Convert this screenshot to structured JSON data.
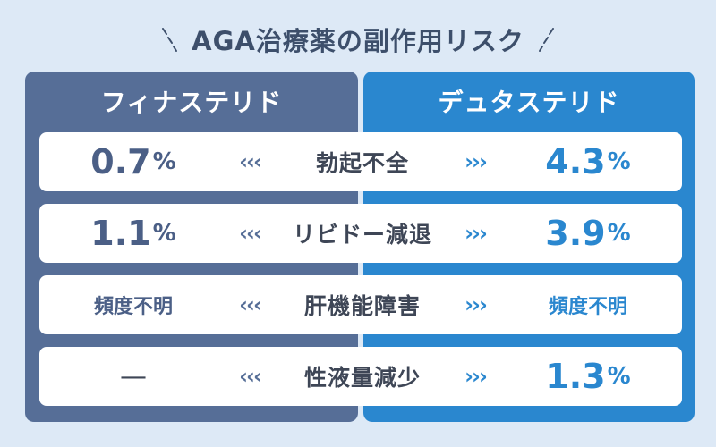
{
  "title": "AGA治療薬の副作用リスク",
  "columns": {
    "left": "フィナステリド",
    "right": "デュタステリド"
  },
  "arrows": {
    "left": "‹‹‹",
    "right": "›››"
  },
  "rows": [
    {
      "label": "勃起不全",
      "left": {
        "num": "0.7",
        "unit": "%"
      },
      "right": {
        "num": "4.3",
        "unit": "%"
      }
    },
    {
      "label": "リビドー減退",
      "left": {
        "num": "1.1",
        "unit": "%"
      },
      "right": {
        "num": "3.9",
        "unit": "%"
      }
    },
    {
      "label": "肝機能障害",
      "left": {
        "text": "頻度不明"
      },
      "right": {
        "text": "頻度不明"
      }
    },
    {
      "label": "性液量減少",
      "left": {
        "text": "—"
      },
      "right": {
        "num": "1.3",
        "unit": "%"
      }
    }
  ],
  "colors": {
    "background": "#dde9f6",
    "left_panel": "#566e97",
    "right_panel": "#2a87cf",
    "title": "#3d4f6b"
  }
}
